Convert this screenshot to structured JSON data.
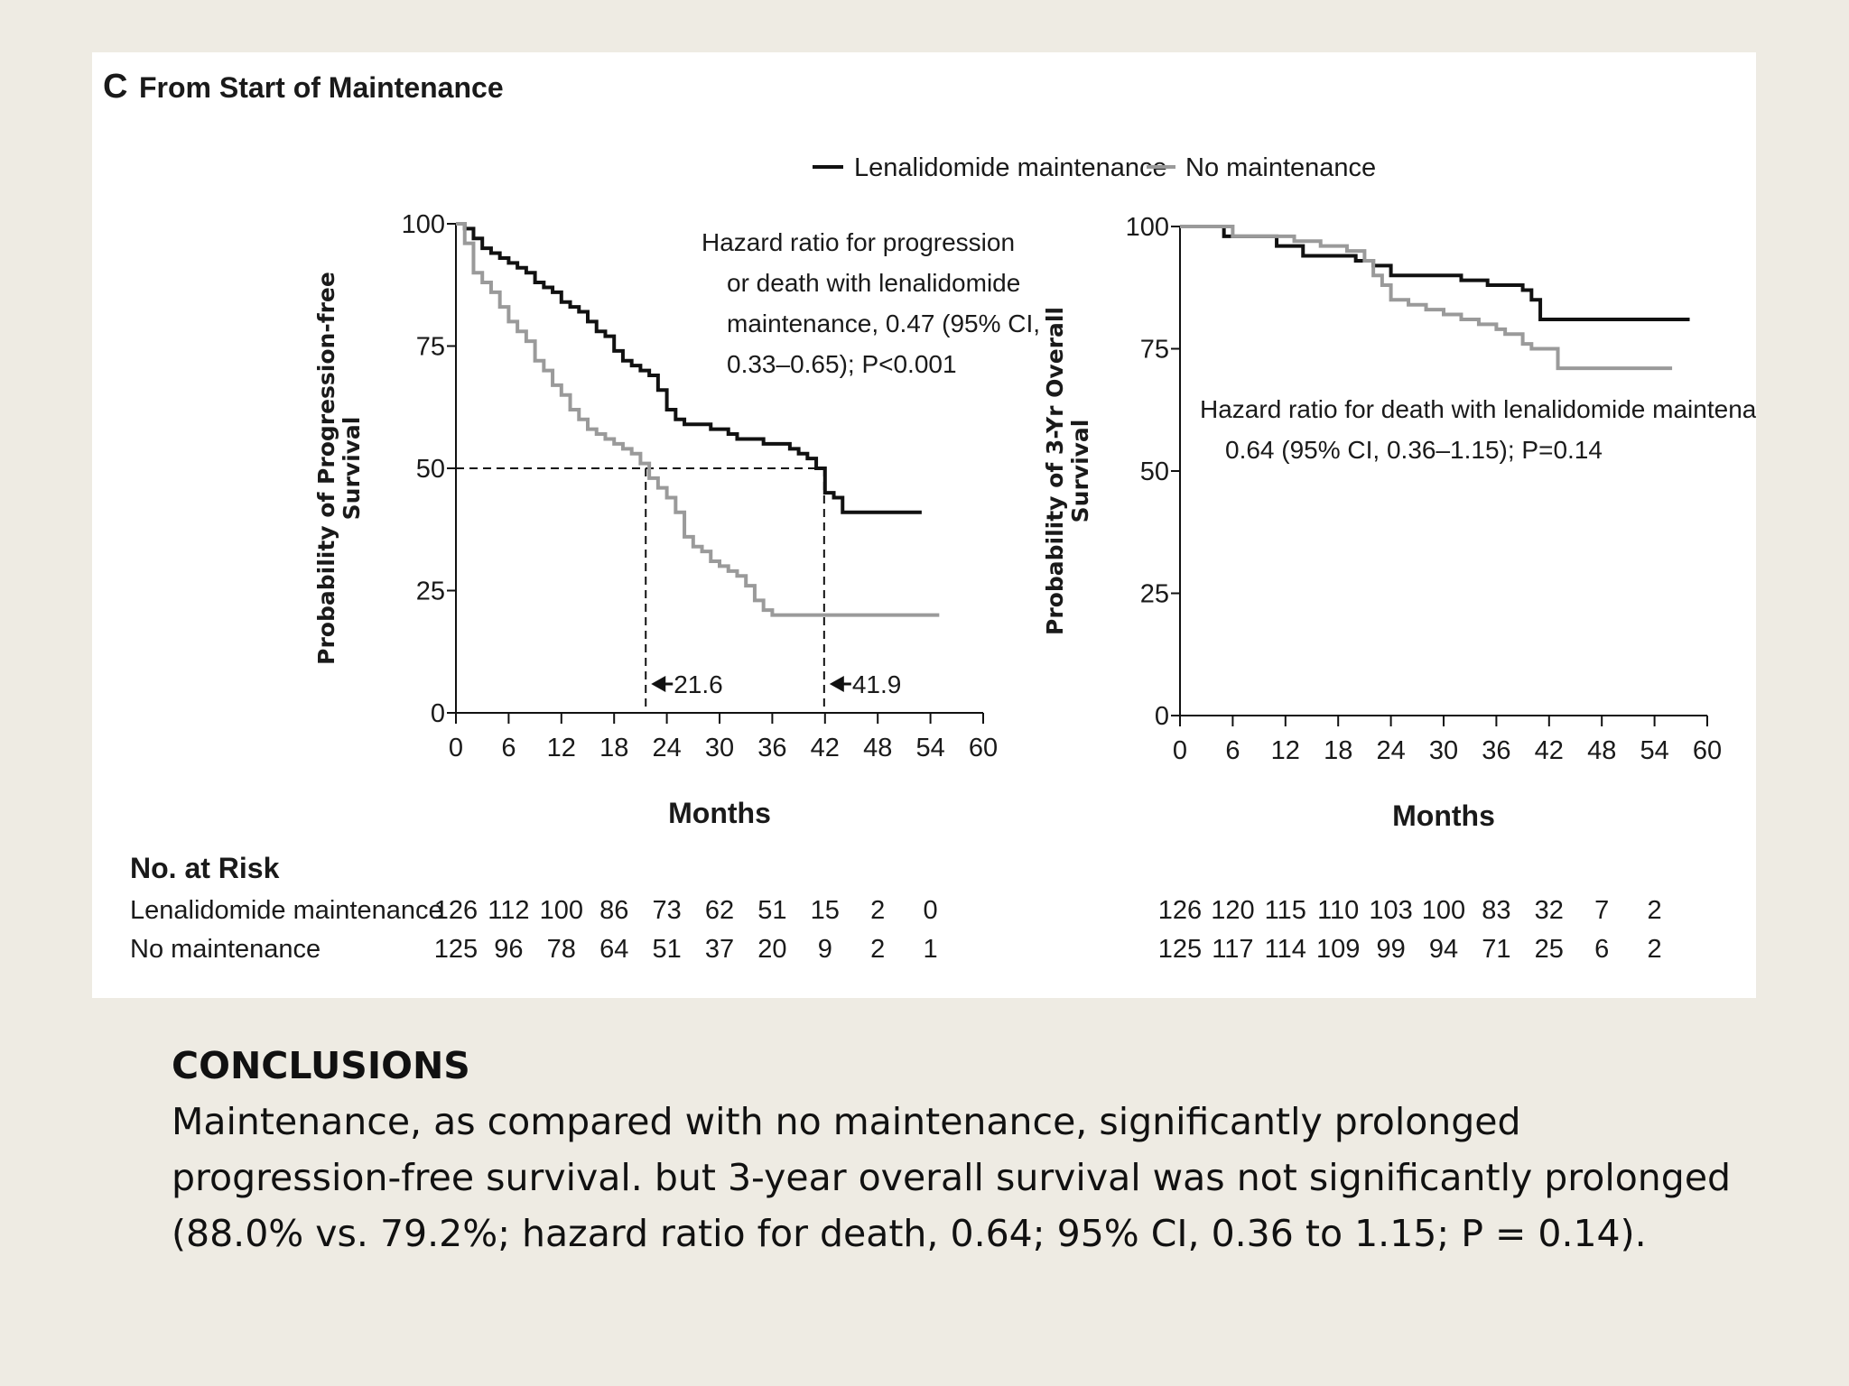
{
  "figure": {
    "panel_letter": "C",
    "panel_title": "From Start of Maintenance",
    "legend": [
      {
        "label": "Lenalidomide maintenance",
        "color": "#111111"
      },
      {
        "label": "No maintenance",
        "color": "#9a9a9a"
      }
    ],
    "risk_table": {
      "title": "No. at Risk",
      "rows": [
        {
          "label": "Lenalidomide maintenance",
          "left": [
            "126",
            "112",
            "100",
            "86",
            "73",
            "62",
            "51",
            "15",
            "2",
            "0"
          ],
          "right": [
            "126",
            "120",
            "115",
            "110",
            "103",
            "100",
            "83",
            "32",
            "7",
            "2"
          ]
        },
        {
          "label": "No maintenance",
          "left": [
            "125",
            "96",
            "78",
            "64",
            "51",
            "37",
            "20",
            "9",
            "2",
            "1"
          ],
          "right": [
            "125",
            "117",
            "114",
            "109",
            "99",
            "94",
            "71",
            "25",
            "6",
            "2"
          ]
        }
      ]
    }
  },
  "chart_data": [
    {
      "type": "line",
      "subtype": "kaplan-meier",
      "ylabel": "Probability of Progression-free Survival",
      "xlabel": "Months",
      "xlim": [
        0,
        60
      ],
      "ylim": [
        0,
        100
      ],
      "xticks": [
        "0",
        "6",
        "12",
        "18",
        "24",
        "30",
        "36",
        "42",
        "48",
        "54",
        "60"
      ],
      "yticks": [
        "0",
        "25",
        "50",
        "75",
        "100"
      ],
      "annotation": [
        "Hazard ratio for progression",
        "or death with lenalidomide",
        "maintenance, 0.47 (95% CI,",
        "0.33–0.65); P<0.001"
      ],
      "medians": [
        {
          "x": 21.6,
          "label": "21.6"
        },
        {
          "x": 41.9,
          "label": "41.9"
        }
      ],
      "series": [
        {
          "name": "Lenalidomide maintenance",
          "color": "#111111",
          "x": [
            0,
            1,
            2,
            3,
            4,
            5,
            6,
            7,
            8,
            9,
            10,
            11,
            12,
            13,
            14,
            15,
            16,
            17,
            18,
            19,
            20,
            21,
            22,
            23,
            24,
            25,
            26,
            27,
            28,
            29,
            30,
            31,
            32,
            33,
            34,
            35,
            36,
            37,
            38,
            39,
            40,
            41,
            42,
            43,
            44,
            53
          ],
          "y": [
            100,
            99,
            97,
            95,
            94,
            93,
            92,
            91,
            90,
            88,
            87,
            86,
            84,
            83,
            82,
            80,
            78,
            77,
            74,
            72,
            71,
            70,
            69,
            66,
            62,
            60,
            59,
            59,
            59,
            58,
            58,
            57,
            56,
            56,
            56,
            55,
            55,
            55,
            54,
            53,
            52,
            50,
            45,
            44,
            41,
            41
          ]
        },
        {
          "name": "No maintenance",
          "color": "#9a9a9a",
          "x": [
            0,
            1,
            2,
            3,
            4,
            5,
            6,
            7,
            8,
            9,
            10,
            11,
            12,
            13,
            14,
            15,
            16,
            17,
            18,
            19,
            20,
            21,
            22,
            23,
            24,
            25,
            26,
            27,
            28,
            29,
            30,
            31,
            32,
            33,
            34,
            35,
            36,
            37,
            38,
            40,
            42,
            44,
            55
          ],
          "y": [
            100,
            96,
            90,
            88,
            86,
            83,
            80,
            78,
            76,
            72,
            70,
            67,
            65,
            62,
            60,
            58,
            57,
            56,
            55,
            54,
            53,
            51,
            48,
            46,
            44,
            41,
            36,
            34,
            33,
            31,
            30,
            29,
            28,
            26,
            23,
            21,
            20,
            20,
            20,
            20,
            20,
            20,
            20
          ]
        }
      ]
    },
    {
      "type": "line",
      "subtype": "kaplan-meier",
      "ylabel": "Probability of 3-Yr Overall Survival",
      "xlabel": "Months",
      "xlim": [
        0,
        60
      ],
      "ylim": [
        0,
        100
      ],
      "xticks": [
        "0",
        "6",
        "12",
        "18",
        "24",
        "30",
        "36",
        "42",
        "48",
        "54",
        "60"
      ],
      "yticks": [
        "0",
        "25",
        "50",
        "75",
        "100"
      ],
      "annotation": [
        "Hazard ratio for death with lenalidomide maintenance",
        "0.64 (95% CI, 0.36–1.15); P=0.14"
      ],
      "series": [
        {
          "name": "Lenalidomide maintenance",
          "color": "#111111",
          "x": [
            0,
            5,
            11,
            14,
            17,
            20,
            22,
            24,
            25,
            32,
            35,
            36,
            39,
            40,
            41,
            58
          ],
          "y": [
            100,
            98,
            96,
            94,
            94,
            93,
            92,
            90,
            90,
            89,
            88,
            88,
            87,
            85,
            81,
            81
          ]
        },
        {
          "name": "No maintenance",
          "color": "#9a9a9a",
          "x": [
            0,
            6,
            7,
            11,
            13,
            16,
            19,
            21,
            22,
            23,
            24,
            26,
            28,
            30,
            32,
            34,
            36,
            37,
            39,
            40,
            43,
            44,
            56
          ],
          "y": [
            100,
            98,
            98,
            98,
            97,
            96,
            95,
            93,
            90,
            88,
            85,
            84,
            83,
            82,
            81,
            80,
            79,
            78,
            76,
            75,
            71,
            71,
            71
          ]
        }
      ]
    }
  ],
  "conclusions": {
    "heading": "CONCLUSIONS",
    "lines": [
      "Maintenance, as compared with no maintenance, significantly prolonged",
      "progression-free survival. but 3-year overall survival was not significantly prolonged",
      "(88.0% vs. 79.2%; hazard ratio for death, 0.64; 95% CI, 0.36 to 1.15; P = 0.14)."
    ]
  }
}
